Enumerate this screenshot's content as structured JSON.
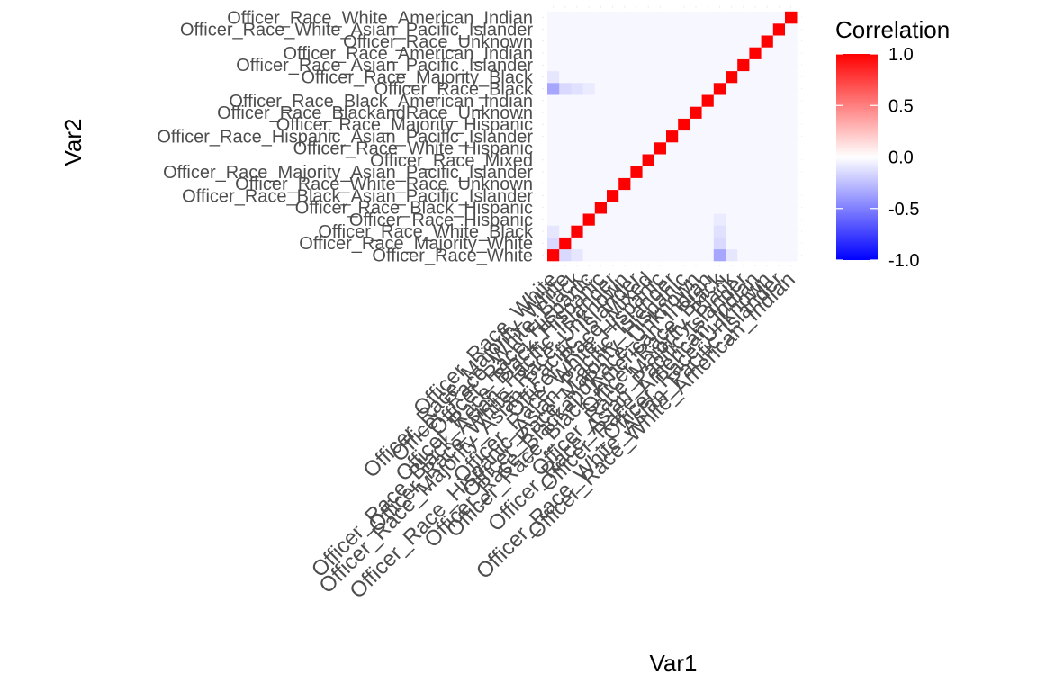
{
  "chart_data": {
    "type": "heatmap",
    "title": "",
    "xlabel": "Var1",
    "ylabel": "Var2",
    "categories": [
      "Officer_Race_White",
      "Officer_Race_Majority_White",
      "Officer_Race_White_Black",
      "Officer_Race_Hispanic",
      "Officer_Race_Black_Hispanic",
      "Officer_Race_Black_Asian_Pacific_Islander",
      "Officer_Race_White_Race_Unknown",
      "Officer_Race_Majority_Asian_Pacific_Islander",
      "Officer_Race_Mixed",
      "Officer_Race_White_Hispanic",
      "Officer_Race_Hispanic_Asian_Pacific_Islander",
      "Officer_Race_Majority_Hispanic",
      "Officer_Race_BlackandRace_Unknown",
      "Officer_Race_Black_American_Indian",
      "Officer_Race_Black",
      "Officer_Race_Majority_Black",
      "Officer_Race_Asian_Pacific_Islander",
      "Officer_Race_American_Indian",
      "Officer_Race_Unknown",
      "Officer_Race_White_Asian_Pacific_Islander",
      "Officer_Race_White_American_Indian"
    ],
    "notable_values": [
      {
        "x": "Officer_Race_White",
        "y": "Officer_Race_Black",
        "value": -0.35
      },
      {
        "x": "Officer_Race_Black",
        "y": "Officer_Race_White",
        "value": -0.35
      },
      {
        "x": "Officer_Race_White",
        "y": "Officer_Race_Majority_White",
        "value": -0.15
      },
      {
        "x": "Officer_Race_Majority_White",
        "y": "Officer_Race_White",
        "value": -0.15
      },
      {
        "x": "Officer_Race_White",
        "y": "Officer_Race_White_Black",
        "value": -0.1
      },
      {
        "x": "Officer_Race_White_Black",
        "y": "Officer_Race_White",
        "value": -0.1
      },
      {
        "x": "Officer_Race_Majority_White",
        "y": "Officer_Race_Black",
        "value": -0.15
      },
      {
        "x": "Officer_Race_Black",
        "y": "Officer_Race_Majority_White",
        "value": -0.15
      },
      {
        "x": "Officer_Race_White_Black",
        "y": "Officer_Race_Black",
        "value": -0.12
      },
      {
        "x": "Officer_Race_Black",
        "y": "Officer_Race_White_Black",
        "value": -0.12
      },
      {
        "x": "Officer_Race_Hispanic",
        "y": "Officer_Race_Black",
        "value": -0.08
      },
      {
        "x": "Officer_Race_Black",
        "y": "Officer_Race_Hispanic",
        "value": -0.08
      },
      {
        "x": "Officer_Race_Majority_Black",
        "y": "Officer_Race_White",
        "value": -0.1
      },
      {
        "x": "Officer_Race_White",
        "y": "Officer_Race_Majority_Black",
        "value": -0.1
      }
    ],
    "background_value": -0.03,
    "diagonal_value": 1.0,
    "legend": {
      "title": "Correlation",
      "placement": "right",
      "range": [
        -1.0,
        1.0
      ],
      "ticks": [
        "1.0",
        "0.5",
        "0.0",
        "-0.5",
        "-1.0"
      ],
      "low_color": "#0000ff",
      "mid_color": "#ffffff",
      "high_color": "#ff0000"
    },
    "grid": true
  }
}
